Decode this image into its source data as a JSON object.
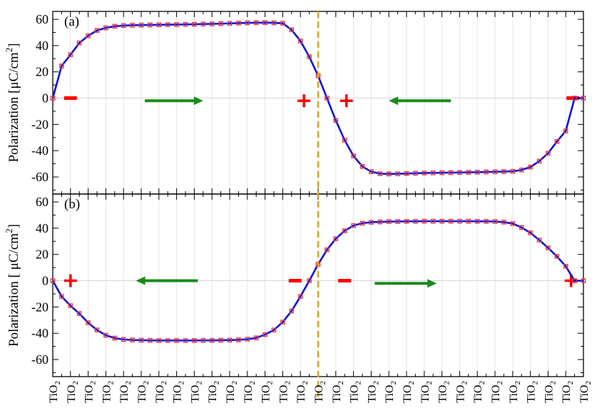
{
  "colors": {
    "line": "#0a10e6",
    "marker": "#e8383d",
    "divider": "#e8a020",
    "arrow": "#1a8a1a",
    "charge": "#ff0000",
    "grid": "#e6e6e6"
  },
  "tick_label": "TiO",
  "tick_label_sub": "2",
  "chart_data": [
    {
      "type": "line",
      "panel_label": "(a)",
      "ylabel": "Polarization [μC/cm",
      "ylabel_sup": "2",
      "ylabel_end": "]",
      "ylim": [
        -73,
        66
      ],
      "yticks": [
        -60,
        -40,
        -20,
        0,
        20,
        40,
        60
      ],
      "x": [
        0,
        0.5,
        1,
        1.5,
        2,
        2.5,
        3,
        3.5,
        4,
        4.5,
        5,
        5.5,
        6,
        6.5,
        7,
        7.5,
        8,
        8.5,
        9,
        9.5,
        10,
        10.5,
        11,
        11.5,
        12,
        12.5,
        13,
        13.5,
        14,
        14.5,
        15,
        15.5,
        16,
        16.5,
        17,
        17.5,
        18,
        18.5,
        19,
        19.5,
        20,
        20.5,
        21,
        21.5,
        22,
        22.5,
        23,
        23.5,
        24,
        24.5,
        25,
        25.5,
        26,
        26.5,
        27,
        27.5,
        28,
        28.5,
        29,
        29.5,
        30
      ],
      "values": [
        0,
        24.5,
        33,
        42,
        47.5,
        51.5,
        53.5,
        54.7,
        55.2,
        55.5,
        55.6,
        55.7,
        55.8,
        55.9,
        56,
        56.1,
        56.2,
        56.4,
        56.5,
        56.7,
        56.9,
        57.1,
        57.3,
        57.4,
        57.5,
        57.3,
        57,
        52,
        43.5,
        31.5,
        17,
        0,
        -17,
        -32,
        -44,
        -52,
        -56,
        -57.5,
        -57.7,
        -57.6,
        -57.4,
        -57.2,
        -57,
        -56.9,
        -56.8,
        -56.7,
        -56.6,
        -56.5,
        -56.4,
        -56.2,
        -56.1,
        -55.9,
        -55.7,
        -54.7,
        -52.5,
        -48,
        -42,
        -33,
        -25,
        0,
        0
      ],
      "arrows": [
        {
          "x1": 5.2,
          "x2": 8.5,
          "y": -2,
          "direction": "right"
        },
        {
          "x1": 22.5,
          "x2": 19,
          "y": -2,
          "direction": "left"
        }
      ],
      "charges": [
        {
          "x": 1,
          "y": 0,
          "sign": "−"
        },
        {
          "x": 14.2,
          "y": -2,
          "sign": "+"
        },
        {
          "x": 16.6,
          "y": -2,
          "sign": "+"
        },
        {
          "x": 29.4,
          "y": 0,
          "sign": "−"
        }
      ]
    },
    {
      "type": "line",
      "panel_label": "(b)",
      "ylabel": "Polarization [ μC/cm",
      "ylabel_sup": "2",
      "ylabel_end": "]",
      "ylim": [
        -73,
        66
      ],
      "yticks": [
        -60,
        -40,
        -20,
        0,
        20,
        40,
        60
      ],
      "x": [
        0,
        0.5,
        1,
        1.5,
        2,
        2.5,
        3,
        3.5,
        4,
        4.5,
        5,
        5.5,
        6,
        6.5,
        7,
        7.5,
        8,
        8.5,
        9,
        9.5,
        10,
        10.5,
        11,
        11.5,
        12,
        12.5,
        13,
        13.5,
        14,
        14.5,
        15,
        15.5,
        16,
        16.5,
        17,
        17.5,
        18,
        18.5,
        19,
        19.5,
        20,
        20.5,
        21,
        21.5,
        22,
        22.5,
        23,
        23.5,
        24,
        24.5,
        25,
        25.5,
        26,
        26.5,
        27,
        27.5,
        28,
        28.5,
        29,
        29.5,
        30
      ],
      "values": [
        0,
        -12,
        -19,
        -25,
        -32,
        -37.5,
        -41.5,
        -43.7,
        -44.7,
        -45.1,
        -45.3,
        -45.4,
        -45.5,
        -45.5,
        -45.5,
        -45.5,
        -45.5,
        -45.4,
        -45.4,
        -45.3,
        -45.2,
        -45,
        -44.5,
        -43.5,
        -41,
        -37.5,
        -31.5,
        -23,
        -12,
        0,
        12.5,
        23.5,
        32,
        38,
        42,
        43.8,
        44.5,
        44.8,
        45,
        45.1,
        45.2,
        45.2,
        45.3,
        45.3,
        45.3,
        45.3,
        45.3,
        45.3,
        45.2,
        45.2,
        45.1,
        44.6,
        43.5,
        40.5,
        36.5,
        31,
        25,
        18.5,
        11,
        0,
        0
      ],
      "arrows": [
        {
          "x1": 8.2,
          "x2": 4.7,
          "y": 0,
          "direction": "left"
        },
        {
          "x1": 18.2,
          "x2": 21.7,
          "y": -2,
          "direction": "right"
        }
      ],
      "charges": [
        {
          "x": 1,
          "y": 0,
          "sign": "+"
        },
        {
          "x": 13.7,
          "y": 0,
          "sign": "−"
        },
        {
          "x": 16.5,
          "y": 0,
          "sign": "−"
        },
        {
          "x": 29.3,
          "y": 0,
          "sign": "+"
        }
      ]
    }
  ]
}
